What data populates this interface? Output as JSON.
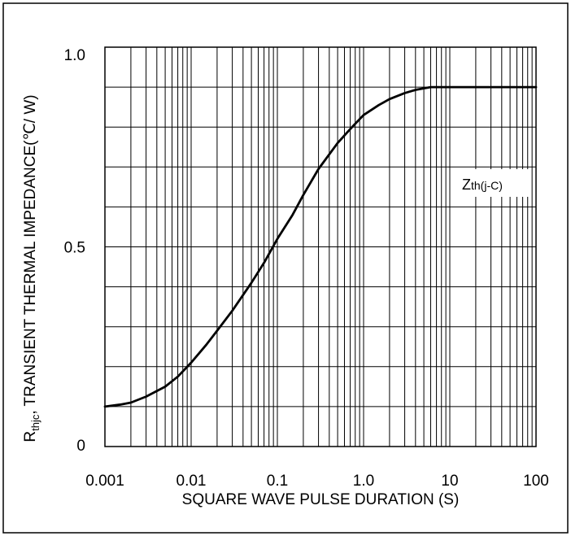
{
  "chart_data": {
    "type": "line",
    "xscale": "log",
    "xlim": [
      0.001,
      100
    ],
    "ylim": [
      0,
      1.0
    ],
    "grid": true,
    "xlabel": "SQUARE WAVE PULSE DURATION (S)",
    "ylabel_prefix": "R",
    "ylabel_sub": "thjc",
    "ylabel_main": ", TRANSIENT THERMAL IMPEDANCE(℃/ W)",
    "xtick_labels": [
      "0.001",
      "0.01",
      "0.1",
      "1.0",
      "10",
      "100"
    ],
    "xtick_values": [
      0.001,
      0.01,
      0.1,
      1.0,
      10,
      100
    ],
    "ytick_labels": [
      "0",
      "0.5",
      "1.0"
    ],
    "ytick_values": [
      0,
      0.5,
      1.0
    ],
    "annotation": {
      "main": "Z",
      "sub": "th(j-C)"
    },
    "series": [
      {
        "x": [
          0.001,
          0.0015,
          0.002,
          0.003,
          0.005,
          0.007,
          0.01,
          0.015,
          0.02,
          0.03,
          0.05,
          0.07,
          0.1,
          0.15,
          0.2,
          0.3,
          0.5,
          0.7,
          1.0,
          1.5,
          2.0,
          3.0,
          4.0,
          5.0,
          6.0,
          7.0,
          10,
          20,
          50,
          100
        ],
        "y": [
          0.1,
          0.105,
          0.11,
          0.125,
          0.15,
          0.175,
          0.21,
          0.255,
          0.29,
          0.34,
          0.41,
          0.46,
          0.52,
          0.58,
          0.63,
          0.695,
          0.76,
          0.795,
          0.83,
          0.855,
          0.87,
          0.885,
          0.893,
          0.897,
          0.9,
          0.9,
          0.9,
          0.9,
          0.9,
          0.9
        ]
      }
    ]
  }
}
